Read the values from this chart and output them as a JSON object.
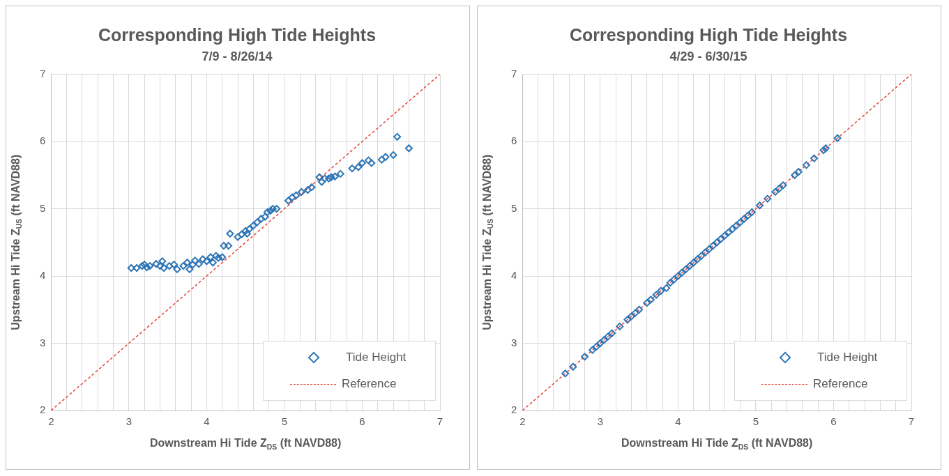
{
  "chart_data": [
    {
      "type": "scatter",
      "title": "Corresponding High Tide Heights",
      "subtitle": "7/9 - 8/26/14",
      "xlabel": "Downstream Hi Tide Z$_{DS}$ (ft NAVD88)",
      "ylabel": "Upstream Hi Tide Z$_{US}$ (ft NAVD88)",
      "xlim": [
        2,
        7
      ],
      "ylim": [
        2,
        7
      ],
      "xticks": [
        2,
        {
          "value": 2.2,
          "label": null
        },
        {
          "value": 2.4,
          "label": null
        },
        {
          "value": 2.6,
          "label": null
        },
        {
          "value": 2.8,
          "label": null
        },
        3,
        {
          "value": 3.2,
          "label": null
        },
        {
          "value": 3.4,
          "label": null
        },
        {
          "value": 3.6,
          "label": null
        },
        {
          "value": 3.8,
          "label": null
        },
        4,
        {
          "value": 4.2,
          "label": null
        },
        {
          "value": 4.4,
          "label": null
        },
        {
          "value": 4.6,
          "label": null
        },
        {
          "value": 4.8,
          "label": null
        },
        5,
        {
          "value": 5.2,
          "label": null
        },
        {
          "value": 5.4,
          "label": null
        },
        {
          "value": 5.6,
          "label": null
        },
        {
          "value": 5.8,
          "label": null
        },
        6,
        {
          "value": 6.2,
          "label": null
        },
        {
          "value": 6.4,
          "label": null
        },
        {
          "value": 6.6,
          "label": null
        },
        {
          "value": 6.8,
          "label": null
        },
        7
      ],
      "yticks": [
        2,
        3,
        4,
        5,
        6,
        7
      ],
      "grid": true,
      "legend": "bottom right",
      "series": [
        {
          "name": "Tide Height",
          "marker": "diamond",
          "color": "#2e75b6",
          "x": [
            3.03,
            3.1,
            3.17,
            3.2,
            3.23,
            3.27,
            3.35,
            3.4,
            3.43,
            3.45,
            3.52,
            3.58,
            3.62,
            3.7,
            3.75,
            3.78,
            3.82,
            3.85,
            3.9,
            3.95,
            4.0,
            4.05,
            4.08,
            4.12,
            4.15,
            4.2,
            4.22,
            4.28,
            4.3,
            4.4,
            4.45,
            4.5,
            4.52,
            4.55,
            4.6,
            4.65,
            4.7,
            4.75,
            4.78,
            4.82,
            4.85,
            4.9,
            5.05,
            5.1,
            5.15,
            5.22,
            5.3,
            5.35,
            5.45,
            5.48,
            5.52,
            5.57,
            5.6,
            5.65,
            5.72,
            5.87,
            5.95,
            6.0,
            6.08,
            6.12,
            6.25,
            6.3,
            6.4,
            6.45,
            6.6
          ],
          "values": [
            4.12,
            4.12,
            4.15,
            4.17,
            4.13,
            4.15,
            4.18,
            4.15,
            4.22,
            4.12,
            4.15,
            4.17,
            4.1,
            4.15,
            4.2,
            4.1,
            4.17,
            4.23,
            4.18,
            4.25,
            4.22,
            4.28,
            4.2,
            4.3,
            4.27,
            4.28,
            4.45,
            4.45,
            4.63,
            4.58,
            4.62,
            4.67,
            4.63,
            4.7,
            4.75,
            4.8,
            4.85,
            4.88,
            4.95,
            4.97,
            5.0,
            5.0,
            5.12,
            5.17,
            5.2,
            5.25,
            5.28,
            5.32,
            5.47,
            5.4,
            5.45,
            5.45,
            5.47,
            5.48,
            5.52,
            5.6,
            5.62,
            5.68,
            5.72,
            5.68,
            5.73,
            5.77,
            5.8,
            6.07,
            5.9
          ]
        },
        {
          "name": "Reference",
          "type": "line",
          "marker": "none",
          "line_style": "dashed",
          "color": "#e8433a",
          "x": [
            2,
            7
          ],
          "values": [
            2,
            7
          ]
        }
      ]
    },
    {
      "type": "scatter",
      "title": "Corresponding High Tide Heights",
      "subtitle": "4/29 - 6/30/15",
      "xlabel": "Downstream Hi Tide Z$_{DS}$ (ft NAVD88)",
      "ylabel": "Upstream Hi Tide Z$_{US}$ (ft NAVD88)",
      "xlim": [
        2,
        7
      ],
      "ylim": [
        2,
        7
      ],
      "xticks": [
        2,
        {
          "value": 2.2,
          "label": null
        },
        {
          "value": 2.4,
          "label": null
        },
        {
          "value": 2.6,
          "label": null
        },
        {
          "value": 2.8,
          "label": null
        },
        3,
        {
          "value": 3.2,
          "label": null
        },
        {
          "value": 3.4,
          "label": null
        },
        {
          "value": 3.6,
          "label": null
        },
        {
          "value": 3.8,
          "label": null
        },
        4,
        {
          "value": 4.2,
          "label": null
        },
        {
          "value": 4.4,
          "label": null
        },
        {
          "value": 4.6,
          "label": null
        },
        {
          "value": 4.8,
          "label": null
        },
        5,
        {
          "value": 5.2,
          "label": null
        },
        {
          "value": 5.4,
          "label": null
        },
        {
          "value": 5.6,
          "label": null
        },
        {
          "value": 5.8,
          "label": null
        },
        6,
        {
          "value": 6.2,
          "label": null
        },
        {
          "value": 6.4,
          "label": null
        },
        {
          "value": 6.6,
          "label": null
        },
        {
          "value": 6.8,
          "label": null
        },
        7
      ],
      "yticks": [
        2,
        3,
        4,
        5,
        6,
        7
      ],
      "grid": true,
      "legend": "bottom right",
      "series": [
        {
          "name": "Tide Height",
          "marker": "diamond",
          "color": "#2e75b6",
          "x": [
            2.55,
            2.65,
            2.8,
            2.9,
            2.95,
            3.0,
            3.05,
            3.1,
            3.15,
            3.25,
            3.35,
            3.4,
            3.45,
            3.5,
            3.6,
            3.65,
            3.72,
            3.78,
            3.85,
            3.9,
            3.95,
            4.0,
            4.05,
            4.1,
            4.15,
            4.2,
            4.25,
            4.3,
            4.35,
            4.4,
            4.45,
            4.5,
            4.55,
            4.6,
            4.65,
            4.7,
            4.75,
            4.8,
            4.85,
            4.9,
            4.95,
            5.05,
            5.15,
            5.25,
            5.3,
            5.35,
            5.5,
            5.55,
            5.65,
            5.75,
            5.87,
            5.9,
            6.05
          ],
          "values": [
            2.55,
            2.65,
            2.8,
            2.9,
            2.95,
            3.0,
            3.05,
            3.1,
            3.15,
            3.25,
            3.35,
            3.4,
            3.45,
            3.5,
            3.6,
            3.65,
            3.72,
            3.78,
            3.82,
            3.9,
            3.95,
            4.0,
            4.05,
            4.1,
            4.15,
            4.2,
            4.25,
            4.3,
            4.35,
            4.4,
            4.45,
            4.5,
            4.55,
            4.6,
            4.65,
            4.7,
            4.75,
            4.8,
            4.85,
            4.9,
            4.95,
            5.05,
            5.15,
            5.25,
            5.3,
            5.35,
            5.5,
            5.55,
            5.65,
            5.75,
            5.87,
            5.9,
            6.05
          ]
        },
        {
          "name": "Reference",
          "type": "line",
          "marker": "none",
          "line_style": "dashed",
          "color": "#e8433a",
          "x": [
            2,
            7
          ],
          "values": [
            2,
            7
          ]
        }
      ]
    }
  ]
}
